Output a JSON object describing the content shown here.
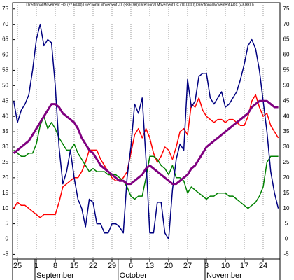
{
  "chart_data": {
    "type": "line",
    "title": "Directional Movement +Di (27.6038),Directional Movement -Di (33.6090),Directional Movement DX (10.0000),Directional Movement ADX (43.0000)",
    "categories": [
      null,
      "25",
      null,
      null,
      null,
      null,
      "1",
      null,
      null,
      null,
      null,
      "8",
      null,
      null,
      null,
      null,
      "15",
      null,
      null,
      null,
      null,
      "22",
      null,
      null,
      null,
      null,
      "29",
      null,
      null,
      null,
      null,
      "6",
      null,
      null,
      null,
      null,
      "13",
      null,
      null,
      null,
      null,
      "20",
      null,
      null,
      null,
      null,
      "27",
      null,
      null,
      null,
      null,
      "3",
      null,
      null,
      null,
      null,
      "10",
      null,
      null,
      null,
      null,
      "17",
      null,
      null,
      null,
      null,
      "24",
      null,
      null,
      null,
      null
    ],
    "month_labels": [
      {
        "label": "September",
        "start": 6
      },
      {
        "label": "October",
        "start": 28
      },
      {
        "label": "November",
        "start": 51
      }
    ],
    "series": [
      {
        "color": "#ff0000",
        "width": 1.5,
        "values": [
          10,
          12,
          11,
          11,
          10,
          9,
          8,
          7,
          8,
          8,
          8,
          8,
          12,
          17,
          18,
          19,
          20,
          20,
          22,
          25,
          29,
          29,
          29,
          26,
          24,
          22,
          20,
          19,
          19,
          20,
          22,
          28,
          34,
          36,
          33,
          36,
          33,
          28,
          25,
          27,
          30,
          29,
          26,
          30,
          35,
          36,
          34,
          44,
          43,
          46,
          42,
          40,
          39,
          38,
          39,
          39,
          38,
          39,
          39,
          38,
          37,
          37,
          40,
          45,
          47,
          43,
          40,
          41,
          37,
          35,
          33
        ]
      },
      {
        "color": "#008000",
        "width": 1.5,
        "values": [
          29,
          28,
          27,
          27,
          28,
          28,
          31,
          37,
          40,
          36,
          38,
          36,
          33,
          31,
          29,
          29,
          31,
          28,
          26,
          24,
          22,
          23,
          22,
          22,
          22,
          21,
          21,
          21,
          20,
          19,
          17,
          14,
          13,
          14,
          14,
          20,
          27,
          27,
          26,
          24,
          23,
          21,
          24,
          20,
          20,
          19,
          15,
          17,
          16,
          15,
          14,
          13,
          14,
          14,
          15,
          15,
          15,
          14,
          14,
          13,
          12,
          11,
          10,
          11,
          12,
          14,
          17,
          25,
          27,
          27,
          27
        ]
      },
      {
        "color": "#000080",
        "width": 1.5,
        "values": [
          45,
          38,
          42,
          44,
          47,
          55,
          65,
          70,
          63,
          65,
          64,
          50,
          30,
          18,
          22,
          29,
          20,
          13,
          10,
          4,
          13,
          12,
          5,
          5,
          2,
          2,
          5,
          5,
          4,
          2,
          20,
          30,
          44,
          41,
          46,
          26,
          2,
          2,
          12,
          12,
          2,
          0,
          16,
          26,
          31,
          29,
          52,
          43,
          45,
          53,
          54,
          54,
          46,
          44,
          46,
          48,
          43,
          44,
          46,
          48,
          52,
          57,
          63,
          65,
          62,
          55,
          45,
          35,
          22,
          15,
          10
        ]
      },
      {
        "color": "#800080",
        "width": 3,
        "values": [
          28,
          29,
          30,
          31,
          32,
          34,
          36,
          38,
          40,
          42,
          44,
          44,
          43,
          41,
          40,
          39,
          38,
          36,
          33,
          31,
          29,
          28,
          26,
          24,
          23,
          22,
          21,
          20,
          19,
          19,
          18,
          18,
          19,
          20,
          21,
          23,
          24,
          23,
          22,
          21,
          20,
          19,
          18,
          18,
          19,
          20,
          21,
          23,
          24,
          26,
          28,
          30,
          31,
          32,
          33,
          34,
          35,
          36,
          37,
          38,
          39,
          40,
          41,
          43,
          44,
          45,
          45,
          45,
          44,
          43,
          43
        ]
      }
    ],
    "ylim": [
      -6.5,
      77
    ],
    "yticks": [
      -5,
      0,
      5,
      10,
      15,
      20,
      25,
      30,
      35,
      40,
      45,
      50,
      55,
      60,
      65,
      70,
      75
    ],
    "zero_line_color": "#000080",
    "grid": true
  }
}
